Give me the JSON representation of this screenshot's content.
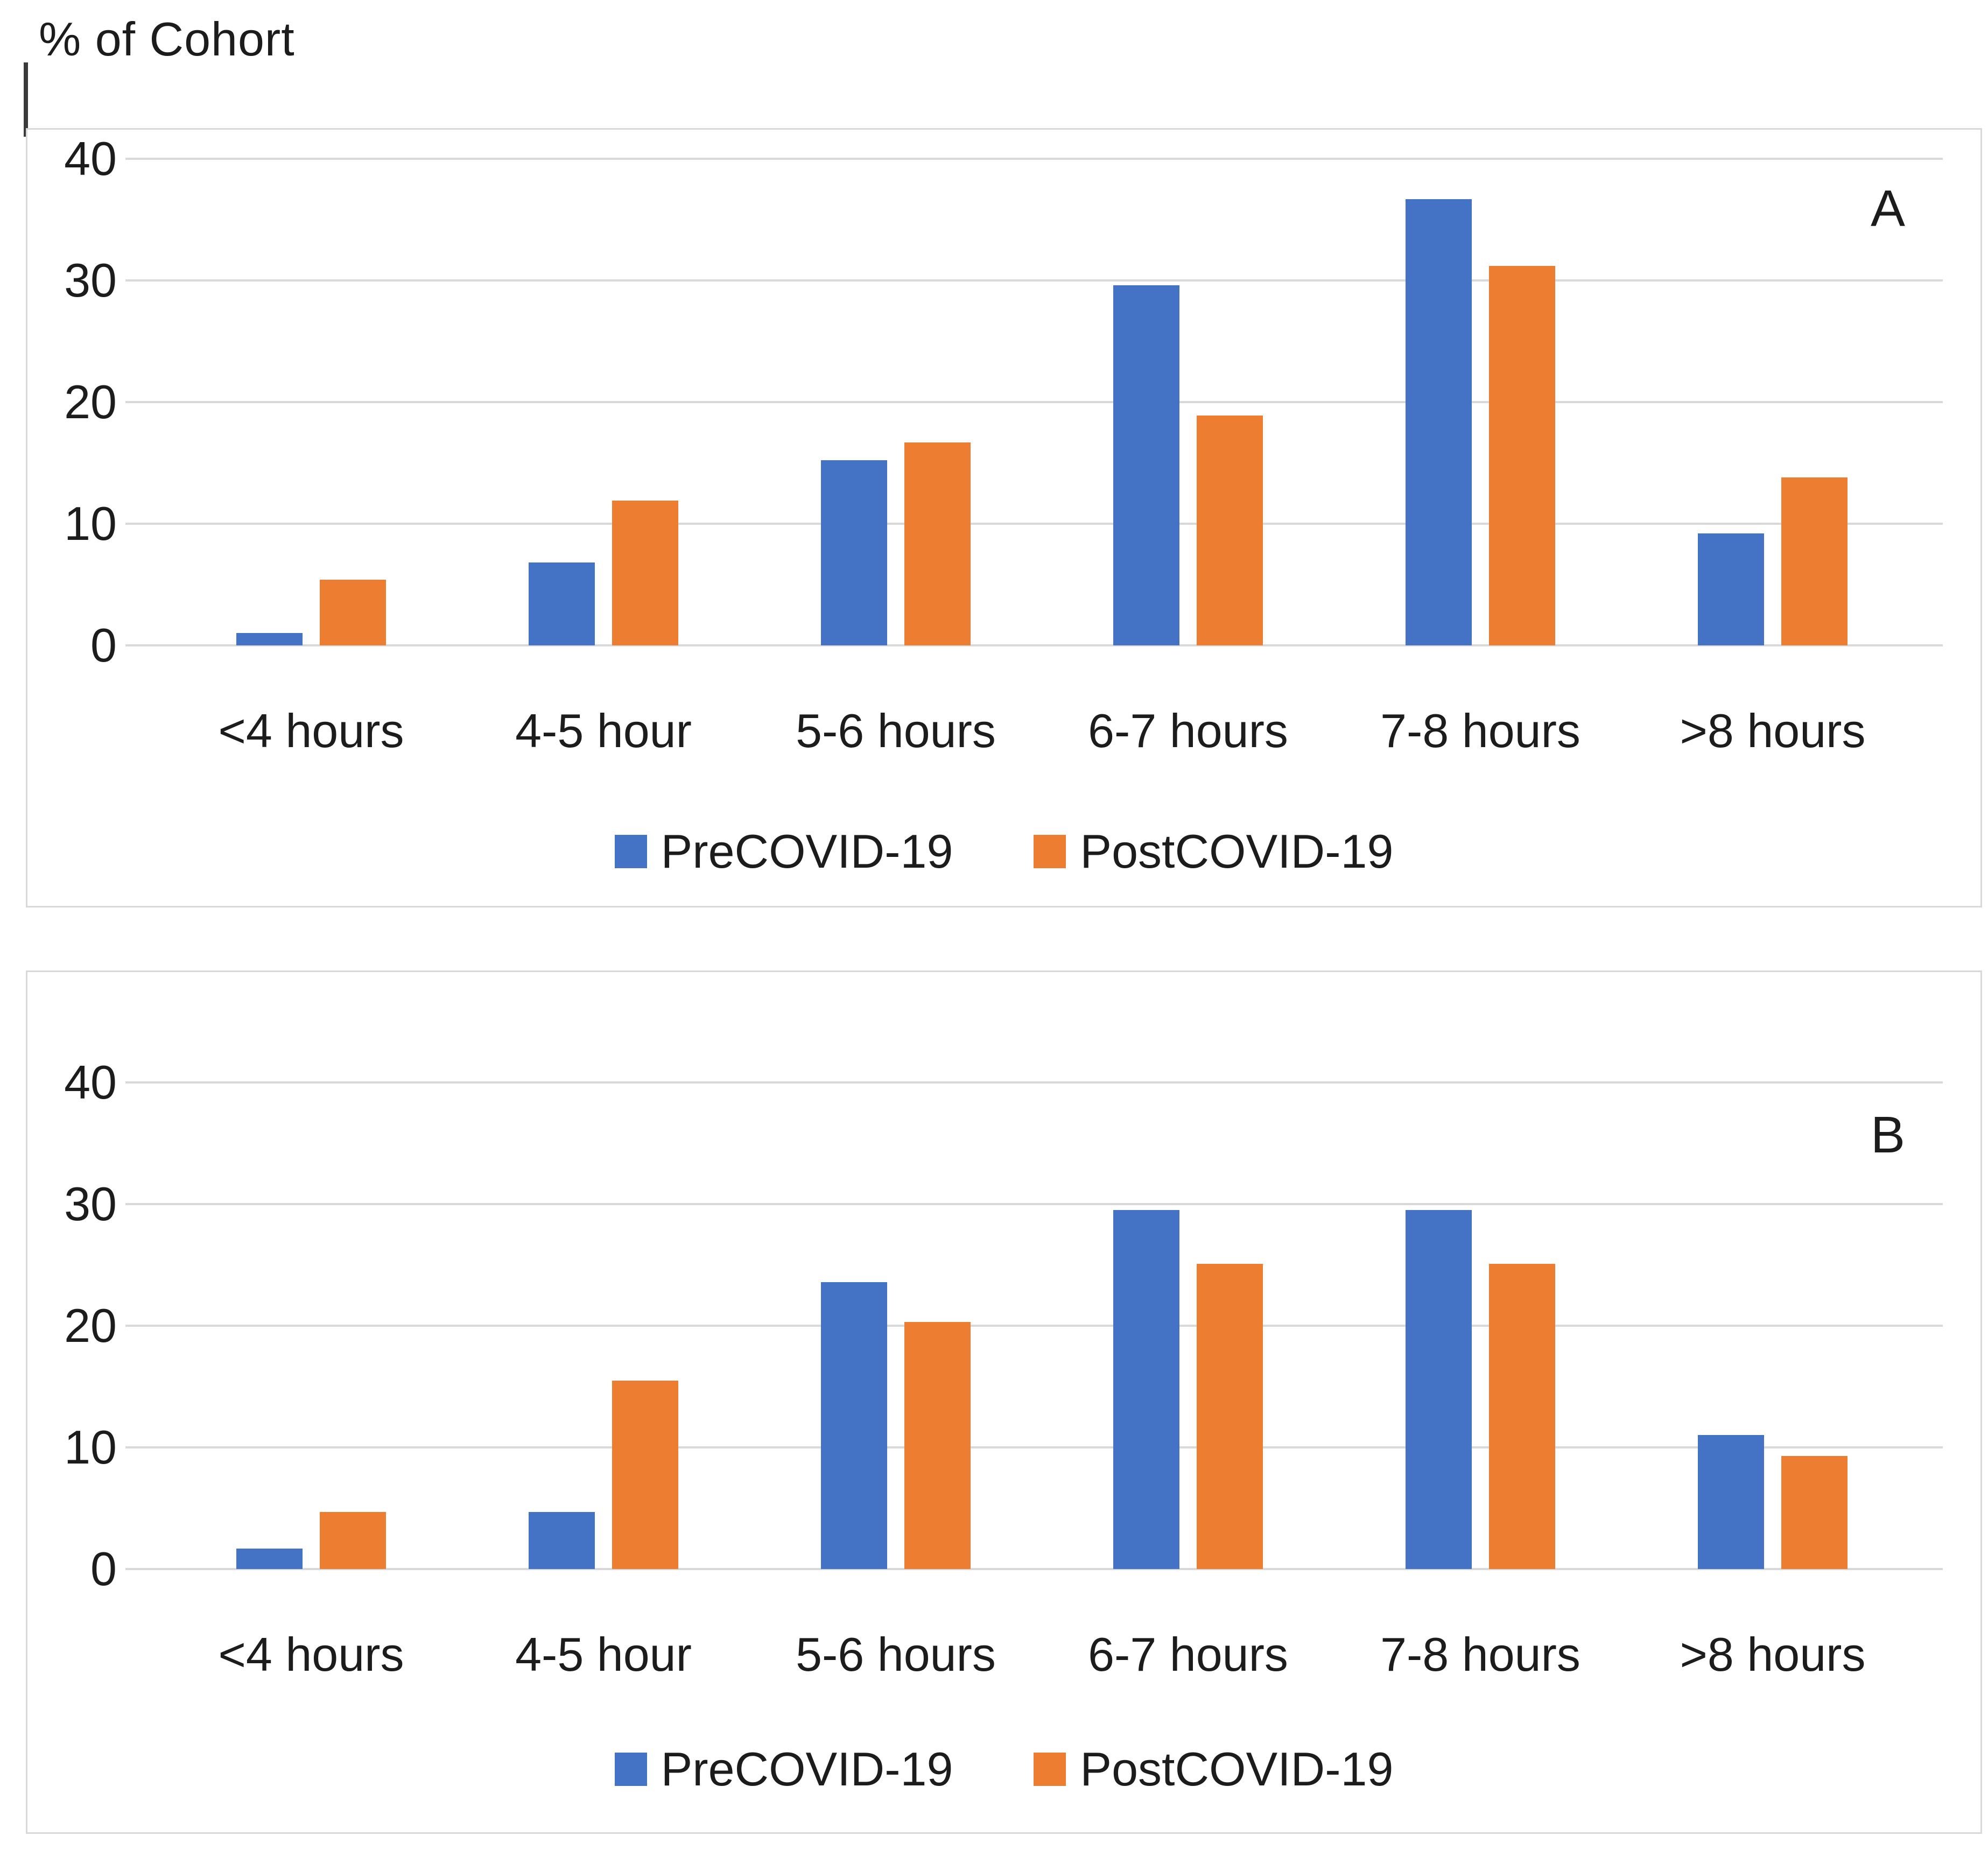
{
  "page": {
    "axis_title": "% of Cohort"
  },
  "colors": {
    "precovid_blue": "#4472C4",
    "postcovid_orange": "#ED7D31",
    "gridline_gray": "#D9D9D9",
    "panel_border_gray": "#D9D9D9",
    "text_dark": "#1c1c1c"
  },
  "chart_data": [
    {
      "type": "bar",
      "panel_label": "A",
      "title": "",
      "ylabel": "% of Cohort",
      "xlabel": "",
      "ylim": [
        0,
        40
      ],
      "yticks": [
        0,
        10,
        20,
        30,
        40
      ],
      "grid": true,
      "legend_position": "bottom",
      "categories": [
        "<4 hours",
        "4-5 hour",
        "5-6 hours",
        "6-7 hours",
        "7-8 hours",
        ">8 hours"
      ],
      "series": [
        {
          "name": "PreCOVID-19",
          "color": "#4472C4",
          "values": [
            1.0,
            6.8,
            15.2,
            29.6,
            36.7,
            9.2
          ]
        },
        {
          "name": "PostCOVID-19",
          "color": "#ED7D31",
          "values": [
            5.4,
            11.9,
            16.7,
            18.9,
            31.2,
            13.8
          ]
        }
      ]
    },
    {
      "type": "bar",
      "panel_label": "B",
      "title": "",
      "ylabel": "",
      "xlabel": "",
      "ylim": [
        0,
        40
      ],
      "yticks": [
        0,
        10,
        20,
        30,
        40
      ],
      "grid": true,
      "legend_position": "bottom",
      "categories": [
        "<4 hours",
        "4-5 hour",
        "5-6 hours",
        "6-7 hours",
        "7-8 hours",
        ">8 hours"
      ],
      "series": [
        {
          "name": "PreCOVID-19",
          "color": "#4472C4",
          "values": [
            1.7,
            4.7,
            23.6,
            29.5,
            29.5,
            11.0
          ]
        },
        {
          "name": "PostCOVID-19",
          "color": "#ED7D31",
          "values": [
            4.7,
            15.5,
            20.3,
            25.1,
            25.1,
            9.3
          ]
        }
      ]
    }
  ]
}
